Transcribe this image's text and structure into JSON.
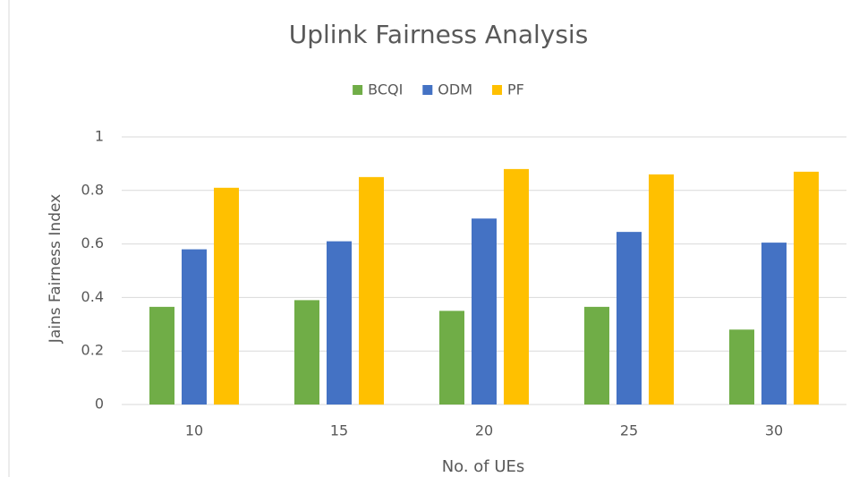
{
  "chart_data": {
    "type": "bar",
    "title": "Uplink Fairness Analysis",
    "x_label": "No. of UEs",
    "y_label": "Jains Fairness Index",
    "categories": [
      "10",
      "15",
      "20",
      "25",
      "30"
    ],
    "series": [
      {
        "name": "BCQI",
        "color": "#70ad47",
        "values": [
          0.365,
          0.39,
          0.35,
          0.365,
          0.28
        ]
      },
      {
        "name": "ODM",
        "color": "#4472c4",
        "values": [
          0.58,
          0.61,
          0.695,
          0.645,
          0.605
        ]
      },
      {
        "name": "PF",
        "color": "#ffc000",
        "values": [
          0.81,
          0.85,
          0.88,
          0.86,
          0.87
        ]
      }
    ],
    "ylim": [
      0,
      1
    ],
    "yticks": [
      0,
      0.2,
      0.4,
      0.6,
      0.8,
      1
    ],
    "grid": true,
    "legend": "top"
  }
}
